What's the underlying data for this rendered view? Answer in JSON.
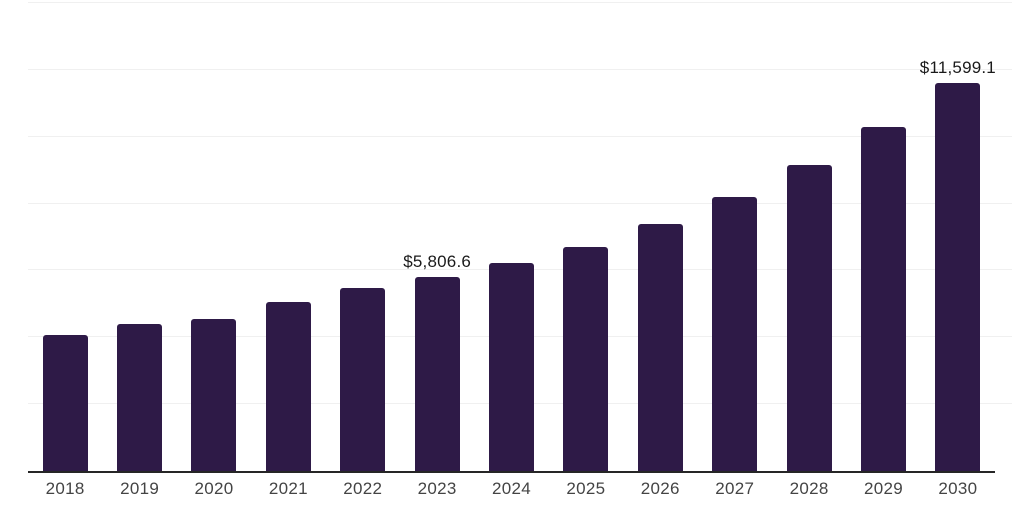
{
  "chart_data": {
    "type": "bar",
    "categories": [
      "2018",
      "2019",
      "2020",
      "2021",
      "2022",
      "2023",
      "2024",
      "2025",
      "2026",
      "2027",
      "2028",
      "2029",
      "2030"
    ],
    "values": [
      4070,
      4400,
      4550,
      5055,
      5475,
      5806.6,
      6220,
      6700,
      7390,
      8195,
      9150,
      10290,
      11599.1
    ],
    "title": "",
    "xlabel": "",
    "ylabel": "",
    "ylim": [
      0,
      14000
    ],
    "gridline_step": 2000,
    "grid": true,
    "legend": false,
    "bar_color": "#2e1a47",
    "data_labels": [
      {
        "category": "2023",
        "text": "$5,806.6"
      },
      {
        "category": "2030",
        "text": "$11,599.1"
      }
    ]
  },
  "styles": {
    "background": "#ffffff",
    "axis_color": "#262626",
    "gridline_color": "#f0f0f0",
    "tick_label_color": "#444444",
    "data_label_color": "#1a1a1a"
  }
}
